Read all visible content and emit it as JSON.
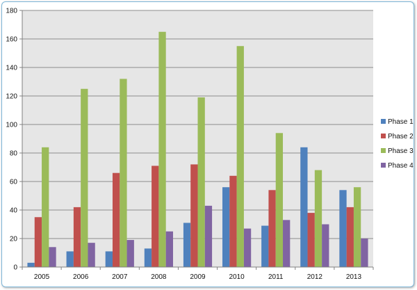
{
  "chart_data": {
    "type": "bar",
    "categories": [
      "2005",
      "2006",
      "2007",
      "2008",
      "2009",
      "2010",
      "2011",
      "2012",
      "2013"
    ],
    "series": [
      {
        "name": "Phase 1",
        "color": "#4f81bd",
        "values": [
          3,
          11,
          11,
          13,
          31,
          56,
          29,
          84,
          54
        ]
      },
      {
        "name": "Phase 2",
        "color": "#c0504d",
        "values": [
          35,
          42,
          66,
          71,
          72,
          64,
          54,
          38,
          42
        ]
      },
      {
        "name": "Phase 3",
        "color": "#9bbb59",
        "values": [
          84,
          125,
          132,
          165,
          119,
          155,
          94,
          68,
          56
        ]
      },
      {
        "name": "Phase 4",
        "color": "#8064a2",
        "values": [
          14,
          17,
          19,
          25,
          43,
          27,
          33,
          30,
          20
        ]
      }
    ],
    "ylim": [
      0,
      180
    ],
    "yticks": [
      "0",
      "20",
      "40",
      "60",
      "80",
      "100",
      "120",
      "140",
      "160",
      "180"
    ],
    "grid": true,
    "legend": "right",
    "plot_background": "#e6e6e6"
  }
}
